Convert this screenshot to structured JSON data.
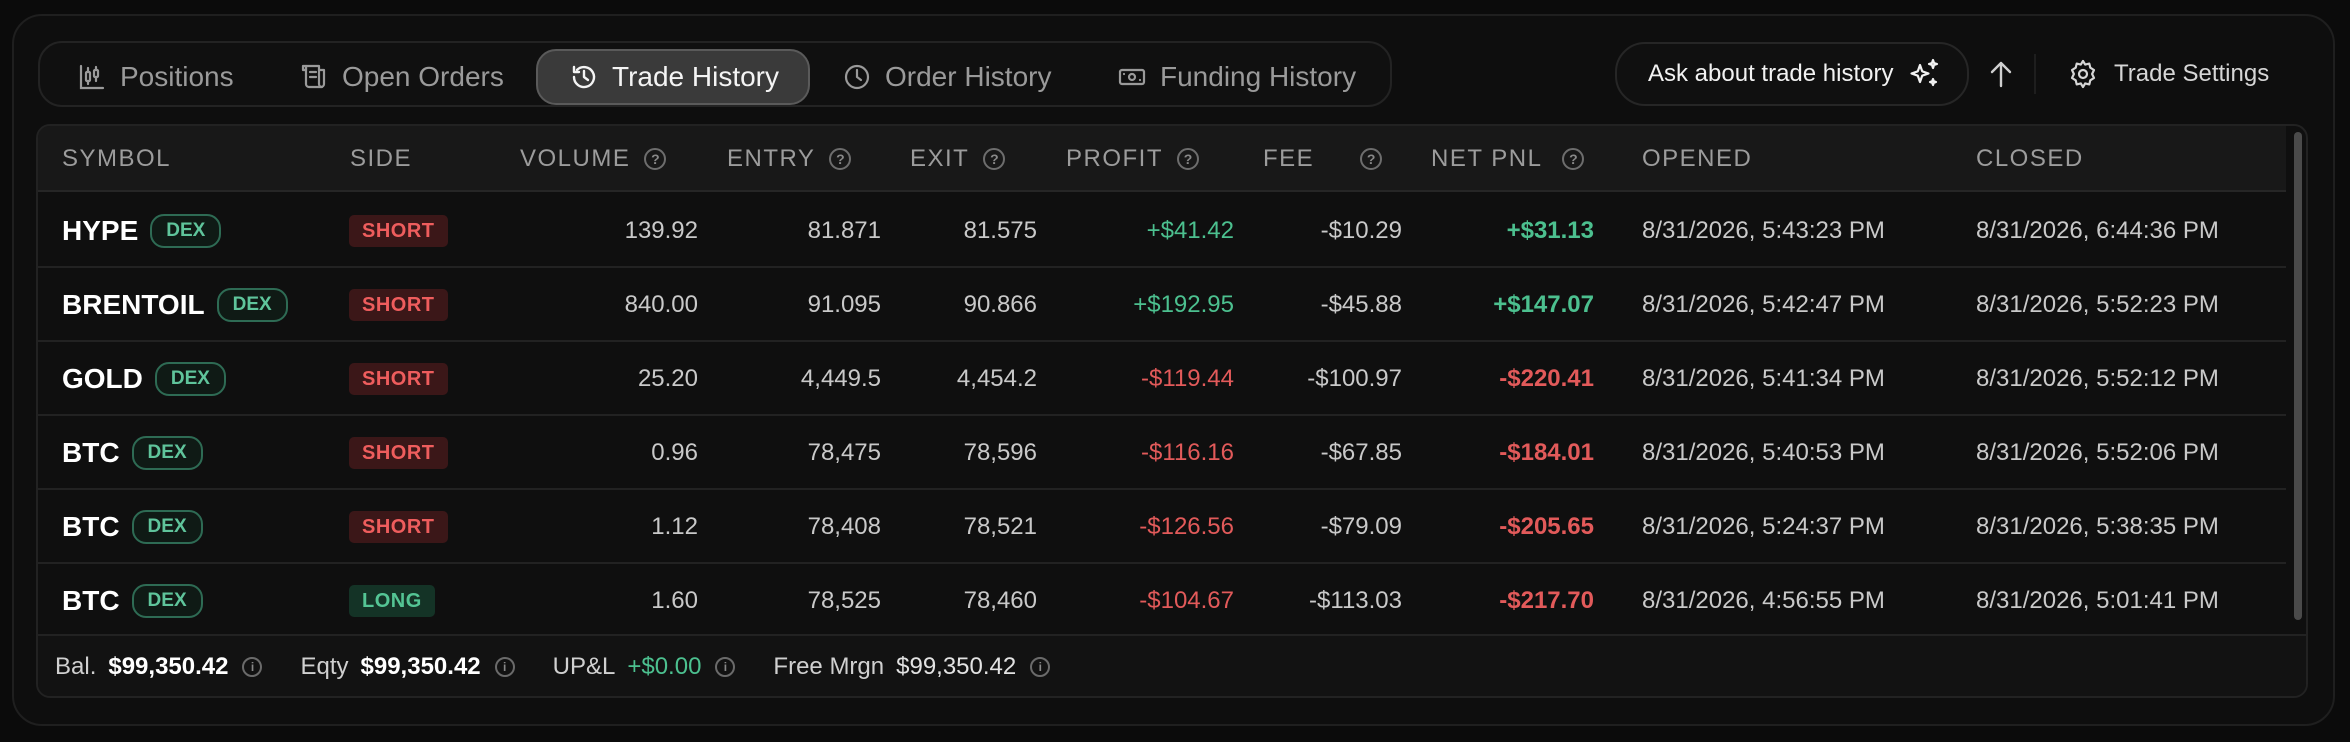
{
  "tabs": [
    {
      "label": "Positions",
      "icon": "candlestick-chart-icon",
      "active": false
    },
    {
      "label": "Open Orders",
      "icon": "receipt-icon",
      "active": false
    },
    {
      "label": "Trade History",
      "icon": "history-icon",
      "active": true
    },
    {
      "label": "Order History",
      "icon": "clock-icon",
      "active": false
    },
    {
      "label": "Funding History",
      "icon": "banknote-icon",
      "active": false
    }
  ],
  "toolbar": {
    "ask_label": "Ask about trade history",
    "ask_icon": "sparkles-icon",
    "sort_icon": "arrow-up-icon",
    "settings_label": "Trade Settings",
    "settings_icon": "gear-icon"
  },
  "columns": [
    "SYMBOL",
    "SIDE",
    "VOLUME",
    "ENTRY",
    "EXIT",
    "PROFIT",
    "FEE",
    "NET PNL",
    "OPENED",
    "CLOSED"
  ],
  "help_glyph": "?",
  "rows": [
    {
      "symbol": "HYPE",
      "tag": "DEX",
      "side": "SHORT",
      "volume": "139.92",
      "entry": "81.871",
      "exit": "81.575",
      "profit": "+$41.42",
      "fee": "-$10.29",
      "net_pnl": "+$31.13",
      "opened": "8/31/2026, 5:43:23 PM",
      "closed": "8/31/2026, 6:44:36 PM"
    },
    {
      "symbol": "BRENTOIL",
      "tag": "DEX",
      "side": "SHORT",
      "volume": "840.00",
      "entry": "91.095",
      "exit": "90.866",
      "profit": "+$192.95",
      "fee": "-$45.88",
      "net_pnl": "+$147.07",
      "opened": "8/31/2026, 5:42:47 PM",
      "closed": "8/31/2026, 5:52:23 PM"
    },
    {
      "symbol": "GOLD",
      "tag": "DEX",
      "side": "SHORT",
      "volume": "25.20",
      "entry": "4,449.5",
      "exit": "4,454.2",
      "profit": "-$119.44",
      "fee": "-$100.97",
      "net_pnl": "-$220.41",
      "opened": "8/31/2026, 5:41:34 PM",
      "closed": "8/31/2026, 5:52:12 PM"
    },
    {
      "symbol": "BTC",
      "tag": "DEX",
      "side": "SHORT",
      "volume": "0.96",
      "entry": "78,475",
      "exit": "78,596",
      "profit": "-$116.16",
      "fee": "-$67.85",
      "net_pnl": "-$184.01",
      "opened": "8/31/2026, 5:40:53 PM",
      "closed": "8/31/2026, 5:52:06 PM"
    },
    {
      "symbol": "BTC",
      "tag": "DEX",
      "side": "SHORT",
      "volume": "1.12",
      "entry": "78,408",
      "exit": "78,521",
      "profit": "-$126.56",
      "fee": "-$79.09",
      "net_pnl": "-$205.65",
      "opened": "8/31/2026, 5:24:37 PM",
      "closed": "8/31/2026, 5:38:35 PM"
    },
    {
      "symbol": "BTC",
      "tag": "DEX",
      "side": "LONG",
      "volume": "1.60",
      "entry": "78,525",
      "exit": "78,460",
      "profit": "-$104.67",
      "fee": "-$113.03",
      "net_pnl": "-$217.70",
      "opened": "8/31/2026, 4:56:55 PM",
      "closed": "8/31/2026, 5:01:41 PM"
    }
  ],
  "footer": {
    "balance_label": "Bal.",
    "balance_value": "$99,350.42",
    "equity_label": "Eqty",
    "equity_value": "$99,350.42",
    "upl_label": "UP&L",
    "upl_value": "+$0.00",
    "free_margin_label": "Free Mrgn",
    "free_margin_value": "$99,350.42",
    "info_glyph": "i"
  },
  "colors": {
    "profit_green": "#4cc08f",
    "loss_red": "#e25a5a",
    "short_badge_bg": "#3b1718",
    "long_badge_bg": "#143326",
    "dex_badge_border": "#2e6b54"
  }
}
